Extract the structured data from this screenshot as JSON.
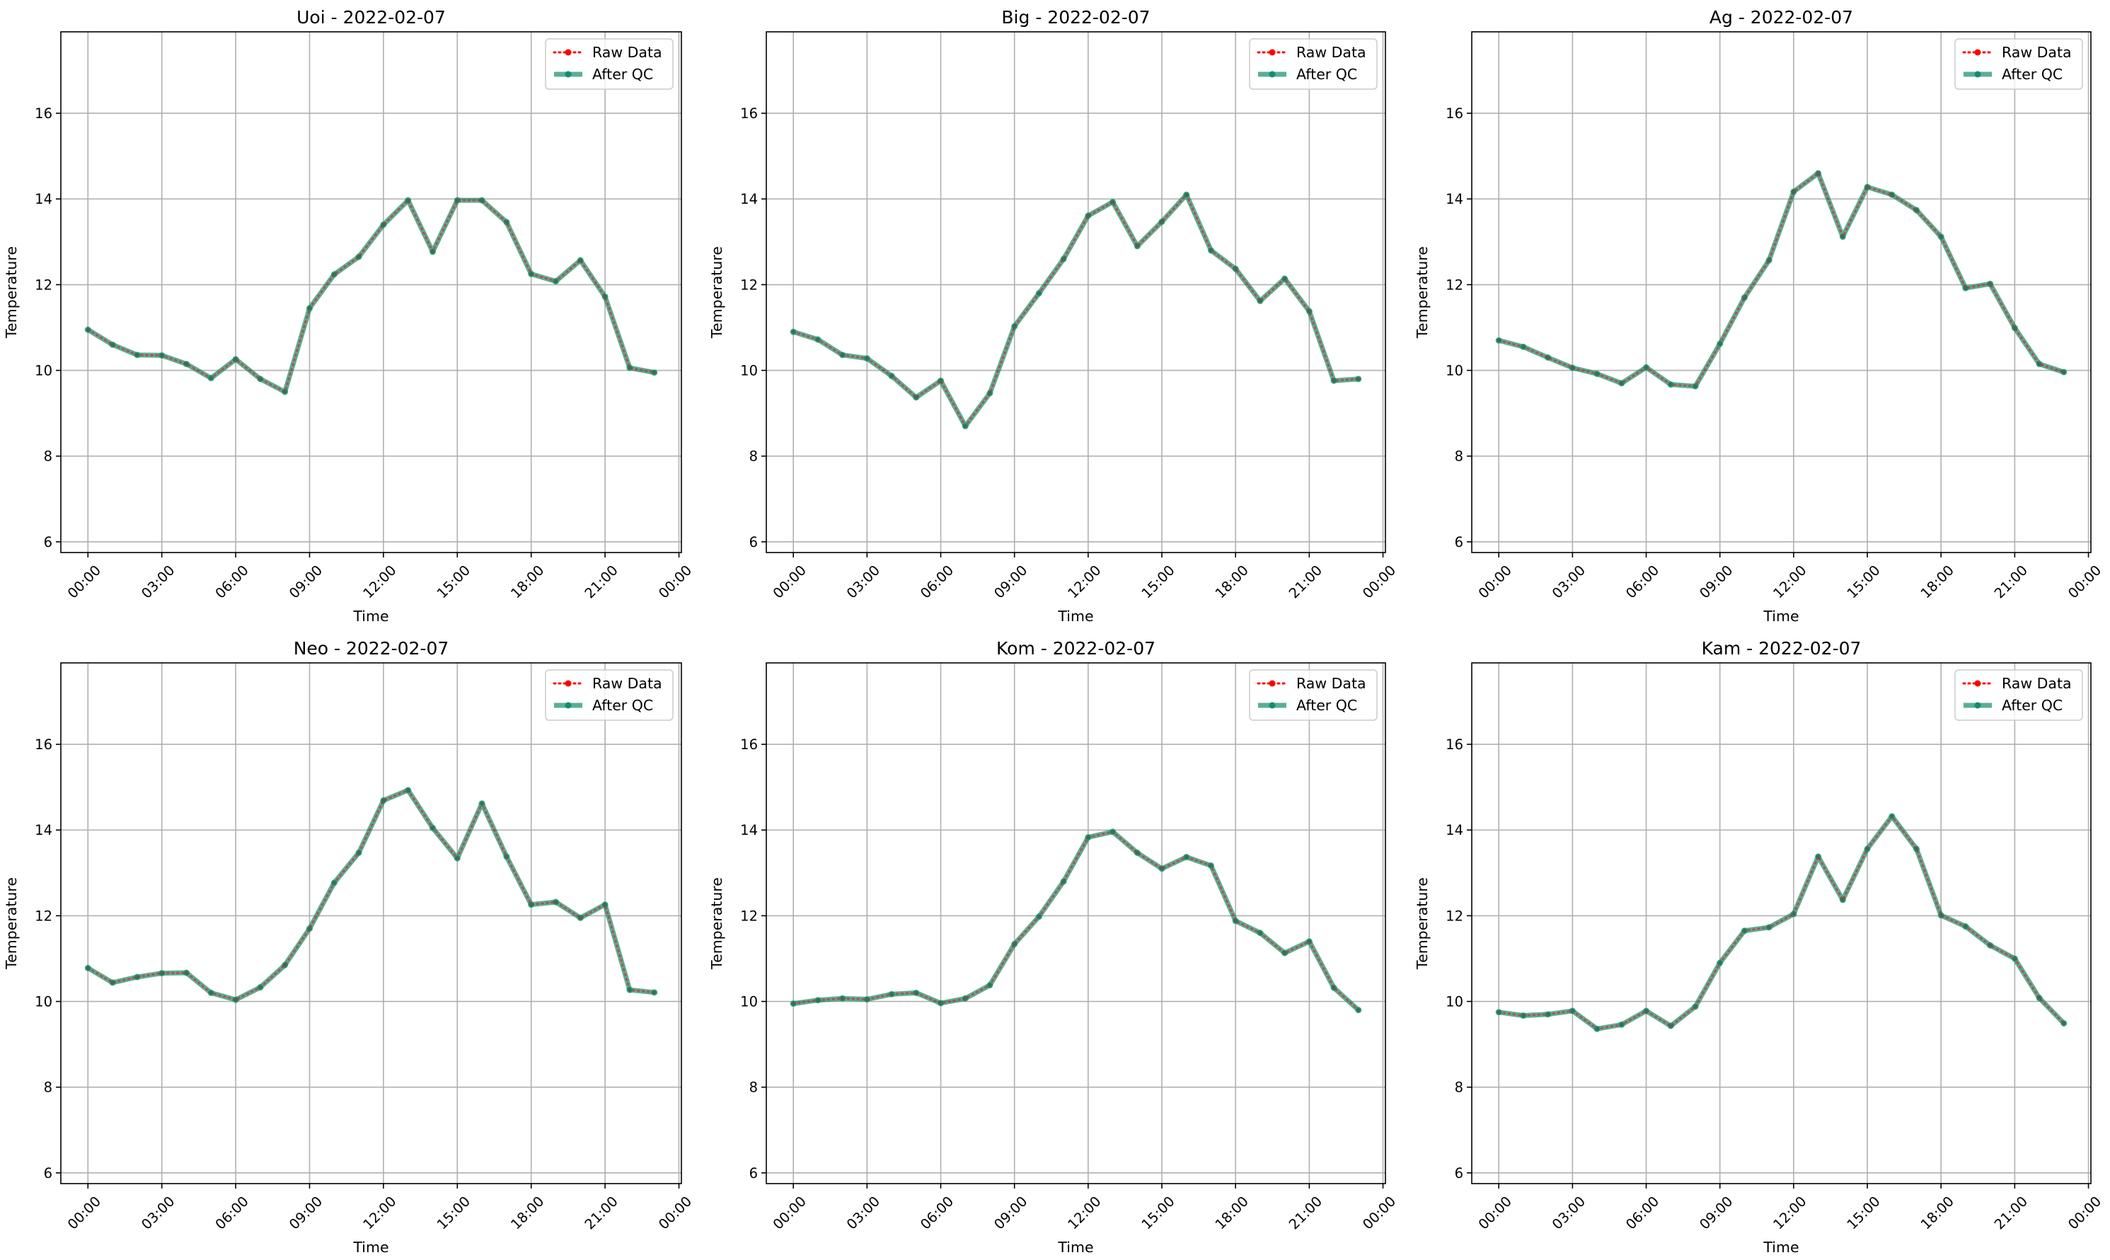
{
  "chart_data": [
    {
      "type": "line",
      "title": "Uoi - 2022-02-07",
      "xlabel": "Time",
      "ylabel": "Temperature",
      "xlim": [
        -1.1,
        24.1
      ],
      "ylim": [
        5.75,
        17.9
      ],
      "x_ticks": [
        0,
        3,
        6,
        9,
        12,
        15,
        18,
        21,
        24
      ],
      "x_tick_labels": [
        "00:00",
        "03:00",
        "06:00",
        "09:00",
        "12:00",
        "15:00",
        "18:00",
        "21:00",
        "00:00"
      ],
      "y_ticks": [
        6,
        8,
        10,
        12,
        14,
        16
      ],
      "y_tick_labels": [
        "6",
        "8",
        "10",
        "12",
        "14",
        "16"
      ],
      "grid": true,
      "legend_position": "upper-right",
      "x": [
        0,
        1,
        2,
        3,
        4,
        5,
        6,
        7,
        8,
        9,
        10,
        11,
        12,
        13,
        14,
        15,
        16,
        17,
        18,
        19,
        20,
        21,
        22,
        23
      ],
      "series": [
        {
          "name": "Raw Data",
          "color": "#ff0000",
          "style": "dotted",
          "values": [
            10.95,
            10.6,
            10.36,
            10.35,
            10.15,
            9.82,
            10.26,
            9.8,
            9.5,
            11.45,
            12.24,
            12.65,
            13.4,
            13.97,
            12.77,
            13.97,
            13.97,
            13.46,
            12.25,
            12.08,
            12.57,
            11.72,
            10.06,
            9.95
          ]
        },
        {
          "name": "After QC",
          "color": "#138d6b",
          "style": "solid",
          "values": [
            10.95,
            10.6,
            10.36,
            10.35,
            10.15,
            9.82,
            10.26,
            9.8,
            9.5,
            11.45,
            12.24,
            12.65,
            13.4,
            13.97,
            12.77,
            13.97,
            13.97,
            13.46,
            12.25,
            12.08,
            12.57,
            11.72,
            10.06,
            9.95
          ]
        }
      ]
    },
    {
      "type": "line",
      "title": "Big - 2022-02-07",
      "xlabel": "Time",
      "ylabel": "Temperature",
      "xlim": [
        -1.1,
        24.1
      ],
      "ylim": [
        5.75,
        17.9
      ],
      "x_ticks": [
        0,
        3,
        6,
        9,
        12,
        15,
        18,
        21,
        24
      ],
      "x_tick_labels": [
        "00:00",
        "03:00",
        "06:00",
        "09:00",
        "12:00",
        "15:00",
        "18:00",
        "21:00",
        "00:00"
      ],
      "y_ticks": [
        6,
        8,
        10,
        12,
        14,
        16
      ],
      "y_tick_labels": [
        "6",
        "8",
        "10",
        "12",
        "14",
        "16"
      ],
      "grid": true,
      "legend_position": "upper-right",
      "x": [
        0,
        1,
        2,
        3,
        4,
        5,
        6,
        7,
        8,
        9,
        10,
        11,
        12,
        13,
        14,
        15,
        16,
        17,
        18,
        19,
        20,
        21,
        22,
        23
      ],
      "series": [
        {
          "name": "Raw Data",
          "color": "#ff0000",
          "style": "dotted",
          "values": [
            10.9,
            10.72,
            10.36,
            10.28,
            9.87,
            9.37,
            9.76,
            8.7,
            9.47,
            11.03,
            11.8,
            12.6,
            13.61,
            13.93,
            12.9,
            13.47,
            14.1,
            12.8,
            12.37,
            11.62,
            12.14,
            11.38,
            9.76,
            9.8
          ]
        },
        {
          "name": "After QC",
          "color": "#138d6b",
          "style": "solid",
          "values": [
            10.9,
            10.72,
            10.36,
            10.28,
            9.87,
            9.37,
            9.76,
            8.7,
            9.47,
            11.03,
            11.8,
            12.6,
            13.61,
            13.93,
            12.9,
            13.47,
            14.1,
            12.8,
            12.37,
            11.62,
            12.14,
            11.38,
            9.76,
            9.8
          ]
        }
      ]
    },
    {
      "type": "line",
      "title": "Ag - 2022-02-07",
      "xlabel": "Time",
      "ylabel": "Temperature",
      "xlim": [
        -1.1,
        24.1
      ],
      "ylim": [
        5.75,
        17.9
      ],
      "x_ticks": [
        0,
        3,
        6,
        9,
        12,
        15,
        18,
        21,
        24
      ],
      "x_tick_labels": [
        "00:00",
        "03:00",
        "06:00",
        "09:00",
        "12:00",
        "15:00",
        "18:00",
        "21:00",
        "00:00"
      ],
      "y_ticks": [
        6,
        8,
        10,
        12,
        14,
        16
      ],
      "y_tick_labels": [
        "6",
        "8",
        "10",
        "12",
        "14",
        "16"
      ],
      "grid": true,
      "legend_position": "upper-right",
      "x": [
        0,
        1,
        2,
        3,
        4,
        5,
        6,
        7,
        8,
        9,
        10,
        11,
        12,
        13,
        14,
        15,
        16,
        17,
        18,
        19,
        20,
        21,
        22,
        23
      ],
      "series": [
        {
          "name": "Raw Data",
          "color": "#ff0000",
          "style": "dotted",
          "values": [
            10.7,
            10.55,
            10.3,
            10.06,
            9.92,
            9.7,
            10.07,
            9.67,
            9.63,
            10.62,
            11.7,
            12.57,
            14.17,
            14.6,
            13.12,
            14.28,
            14.1,
            13.74,
            13.12,
            11.92,
            12.02,
            10.99,
            10.15,
            9.96
          ]
        },
        {
          "name": "After QC",
          "color": "#138d6b",
          "style": "solid",
          "values": [
            10.7,
            10.55,
            10.3,
            10.06,
            9.92,
            9.7,
            10.07,
            9.67,
            9.63,
            10.62,
            11.7,
            12.57,
            14.17,
            14.6,
            13.12,
            14.28,
            14.1,
            13.74,
            13.12,
            11.92,
            12.02,
            10.99,
            10.15,
            9.96
          ]
        }
      ]
    },
    {
      "type": "line",
      "title": "Neo - 2022-02-07",
      "xlabel": "Time",
      "ylabel": "Temperature",
      "xlim": [
        -1.1,
        24.1
      ],
      "ylim": [
        5.75,
        17.9
      ],
      "x_ticks": [
        0,
        3,
        6,
        9,
        12,
        15,
        18,
        21,
        24
      ],
      "x_tick_labels": [
        "00:00",
        "03:00",
        "06:00",
        "09:00",
        "12:00",
        "15:00",
        "18:00",
        "21:00",
        "00:00"
      ],
      "y_ticks": [
        6,
        8,
        10,
        12,
        14,
        16
      ],
      "y_tick_labels": [
        "6",
        "8",
        "10",
        "12",
        "14",
        "16"
      ],
      "grid": true,
      "legend_position": "upper-right",
      "x": [
        0,
        1,
        2,
        3,
        4,
        5,
        6,
        7,
        8,
        9,
        10,
        11,
        12,
        13,
        14,
        15,
        16,
        17,
        18,
        19,
        20,
        21,
        22,
        23
      ],
      "series": [
        {
          "name": "Raw Data",
          "color": "#ff0000",
          "style": "dotted",
          "values": [
            10.78,
            10.44,
            10.57,
            10.66,
            10.67,
            10.2,
            10.04,
            10.33,
            10.85,
            11.7,
            12.77,
            13.47,
            14.69,
            14.93,
            14.05,
            13.34,
            14.62,
            13.38,
            12.26,
            12.32,
            11.95,
            12.26,
            10.27,
            10.21
          ]
        },
        {
          "name": "After QC",
          "color": "#138d6b",
          "style": "solid",
          "values": [
            10.78,
            10.44,
            10.57,
            10.66,
            10.67,
            10.2,
            10.04,
            10.33,
            10.85,
            11.7,
            12.77,
            13.47,
            14.69,
            14.93,
            14.05,
            13.34,
            14.62,
            13.38,
            12.26,
            12.32,
            11.95,
            12.26,
            10.27,
            10.21
          ]
        }
      ]
    },
    {
      "type": "line",
      "title": "Kom - 2022-02-07",
      "xlabel": "Time",
      "ylabel": "Temperature",
      "xlim": [
        -1.1,
        24.1
      ],
      "ylim": [
        5.75,
        17.9
      ],
      "x_ticks": [
        0,
        3,
        6,
        9,
        12,
        15,
        18,
        21,
        24
      ],
      "x_tick_labels": [
        "00:00",
        "03:00",
        "06:00",
        "09:00",
        "12:00",
        "15:00",
        "18:00",
        "21:00",
        "00:00"
      ],
      "y_ticks": [
        6,
        8,
        10,
        12,
        14,
        16
      ],
      "y_tick_labels": [
        "6",
        "8",
        "10",
        "12",
        "14",
        "16"
      ],
      "grid": true,
      "legend_position": "upper-right",
      "x": [
        0,
        1,
        2,
        3,
        4,
        5,
        6,
        7,
        8,
        9,
        10,
        11,
        12,
        13,
        14,
        15,
        16,
        17,
        18,
        19,
        20,
        21,
        22,
        23
      ],
      "series": [
        {
          "name": "Raw Data",
          "color": "#ff0000",
          "style": "dotted",
          "values": [
            9.95,
            10.03,
            10.07,
            10.05,
            10.17,
            10.2,
            9.96,
            10.07,
            10.38,
            11.34,
            11.98,
            12.8,
            13.83,
            13.96,
            13.47,
            13.1,
            13.37,
            13.17,
            11.88,
            11.6,
            11.13,
            11.4,
            10.32,
            9.8
          ]
        },
        {
          "name": "After QC",
          "color": "#138d6b",
          "style": "solid",
          "values": [
            9.95,
            10.03,
            10.07,
            10.05,
            10.17,
            10.2,
            9.96,
            10.07,
            10.38,
            11.34,
            11.98,
            12.8,
            13.83,
            13.96,
            13.47,
            13.1,
            13.37,
            13.17,
            11.88,
            11.6,
            11.13,
            11.4,
            10.32,
            9.8
          ]
        }
      ]
    },
    {
      "type": "line",
      "title": "Kam - 2022-02-07",
      "xlabel": "Time",
      "ylabel": "Temperature",
      "xlim": [
        -1.1,
        24.1
      ],
      "ylim": [
        5.75,
        17.9
      ],
      "x_ticks": [
        0,
        3,
        6,
        9,
        12,
        15,
        18,
        21,
        24
      ],
      "x_tick_labels": [
        "00:00",
        "03:00",
        "06:00",
        "09:00",
        "12:00",
        "15:00",
        "18:00",
        "21:00",
        "00:00"
      ],
      "y_ticks": [
        6,
        8,
        10,
        12,
        14,
        16
      ],
      "y_tick_labels": [
        "6",
        "8",
        "10",
        "12",
        "14",
        "16"
      ],
      "grid": true,
      "legend_position": "upper-right",
      "x": [
        0,
        1,
        2,
        3,
        4,
        5,
        6,
        7,
        8,
        9,
        10,
        11,
        12,
        13,
        14,
        15,
        16,
        17,
        18,
        19,
        20,
        21,
        22,
        23
      ],
      "series": [
        {
          "name": "Raw Data",
          "color": "#ff0000",
          "style": "dotted",
          "values": [
            9.75,
            9.67,
            9.7,
            9.78,
            9.36,
            9.46,
            9.78,
            9.43,
            9.88,
            10.9,
            11.65,
            11.73,
            12.04,
            13.38,
            12.37,
            13.56,
            14.32,
            13.56,
            12.01,
            11.75,
            11.31,
            11.0,
            10.08,
            9.49
          ]
        },
        {
          "name": "After QC",
          "color": "#138d6b",
          "style": "solid",
          "values": [
            9.75,
            9.67,
            9.7,
            9.78,
            9.36,
            9.46,
            9.78,
            9.43,
            9.88,
            10.9,
            11.65,
            11.73,
            12.04,
            13.38,
            12.37,
            13.56,
            14.32,
            13.56,
            12.01,
            11.75,
            11.31,
            11.0,
            10.08,
            9.49
          ]
        }
      ]
    }
  ]
}
